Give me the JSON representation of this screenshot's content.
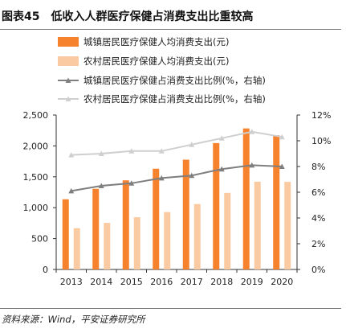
{
  "header": {
    "figure_no": "图表45",
    "title": "低收入人群医疗保健占消费支出比重较高"
  },
  "footer": {
    "source": "资料来源：Wind，平安证券研究所"
  },
  "chart_data": {
    "type": "bar",
    "categories": [
      "2013",
      "2014",
      "2015",
      "2016",
      "2017",
      "2018",
      "2019",
      "2020"
    ],
    "series": [
      {
        "name": "城镇居民医疗保健人均消费支出(元)",
        "kind": "bar",
        "axis": "left",
        "color": "#F7822D",
        "values": [
          1136,
          1306,
          1443,
          1631,
          1777,
          2046,
          2283,
          2172
        ]
      },
      {
        "name": "农村居民医疗保健人均消费支出(元)",
        "kind": "bar",
        "axis": "left",
        "color": "#FACBA3",
        "values": [
          668,
          754,
          846,
          929,
          1059,
          1240,
          1421,
          1418
        ]
      },
      {
        "name": "城镇居民医疗保健占消费支出比例(%，右轴)",
        "kind": "line",
        "axis": "right",
        "color": "#7F7F7F",
        "values": [
          6.1,
          6.5,
          6.7,
          7.1,
          7.3,
          7.8,
          8.1,
          8.0
        ]
      },
      {
        "name": "农村居民医疗保健占消费支出比例(%，右轴)",
        "kind": "line",
        "axis": "right",
        "color": "#CFCFCF",
        "values": [
          8.9,
          9.0,
          9.2,
          9.2,
          9.7,
          10.2,
          10.7,
          10.3
        ]
      }
    ],
    "y_left": {
      "min": 0,
      "max": 2500,
      "ticks": [
        0,
        500,
        1000,
        1500,
        2000,
        2500
      ],
      "tick_labels": [
        "0",
        "500",
        "1,000",
        "1,500",
        "2,000",
        "2,500"
      ]
    },
    "y_right": {
      "min": 0,
      "max": 12,
      "ticks": [
        0,
        2,
        4,
        6,
        8,
        10,
        12
      ],
      "tick_labels": [
        "0%",
        "2%",
        "4%",
        "6%",
        "8%",
        "10%",
        "12%"
      ]
    },
    "legend_position": "top",
    "grid": false
  }
}
